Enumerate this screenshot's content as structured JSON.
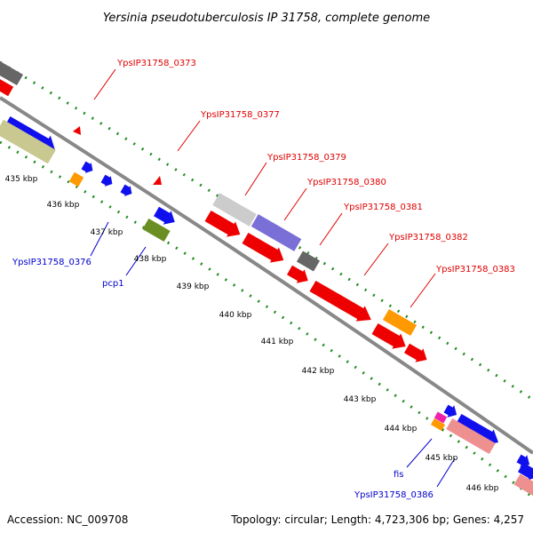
{
  "title": "Yersinia pseudotuberculosis IP 31758, complete genome",
  "accession": "Accession: NC_009708",
  "topology": "Topology: circular; Length: 4,723,306 bp; Genes: 4,257",
  "colors": {
    "red": "#ee0000",
    "blue": "#1010ee",
    "gray": "#666666",
    "khaki": "#c8c890",
    "orange": "#ff9900",
    "olive": "#6b8e23",
    "lightgray": "#cccccc",
    "purple": "#7a6fd6",
    "pink": "#ee9090",
    "magenta": "#ee22aa",
    "backbone": "#888888",
    "tick": "#228b22",
    "red_label": "#e00000",
    "blue_label": "#0000cc"
  },
  "kbp_ticks": [
    "435 kbp",
    "436 kbp",
    "437 kbp",
    "438 kbp",
    "439 kbp",
    "440 kbp",
    "441 kbp",
    "442 kbp",
    "443 kbp",
    "444 kbp",
    "445 kbp",
    "446 kbp"
  ],
  "red_labels": [
    "YpsIP31758_0373",
    "YpsIP31758_0377",
    "YpsIP31758_0379",
    "YpsIP31758_0380",
    "YpsIP31758_0381",
    "YpsIP31758_0382",
    "YpsIP31758_0383"
  ],
  "blue_labels": [
    "YpsIP31758_0376",
    "pcp1",
    "fis",
    "YpsIP31758_0386"
  ]
}
